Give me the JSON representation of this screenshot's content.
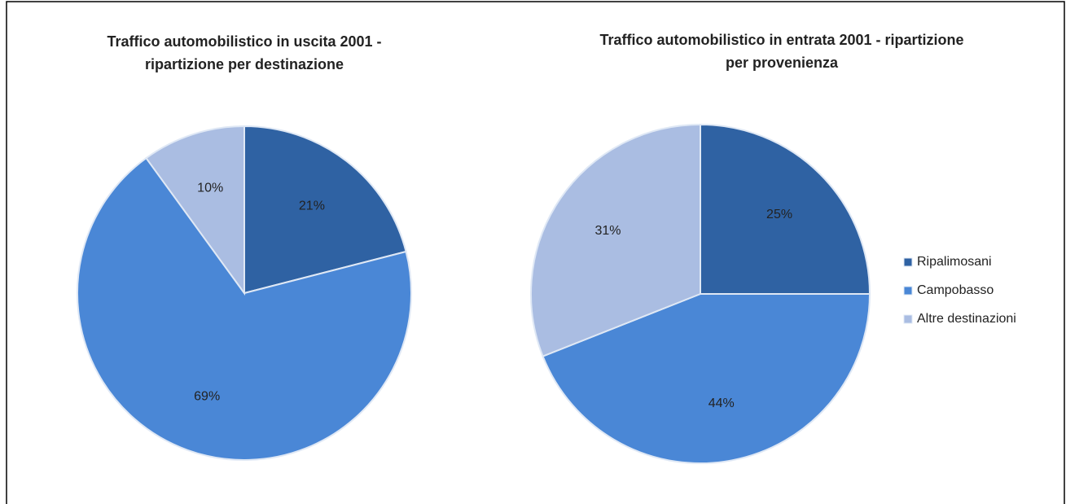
{
  "legend": {
    "categories": [
      "Ripalimosani",
      "Campobasso",
      "Altre destinazioni"
    ],
    "colors": [
      "#2f62a3",
      "#4a87d6",
      "#aabde2"
    ]
  },
  "chart_data": [
    {
      "type": "pie",
      "title": [
        "Traffico automobilistico in uscita 2001 -",
        "ripartizione per destinazione"
      ],
      "values": [
        21,
        69,
        10
      ],
      "value_labels": [
        "21%",
        "69%",
        "10%"
      ]
    },
    {
      "type": "pie",
      "title": [
        "Traffico automobilistico in entrata 2001 - ripartizione",
        "per provenienza"
      ],
      "values": [
        25,
        44,
        31
      ],
      "value_labels": [
        "25%",
        "44%",
        "31%"
      ]
    }
  ]
}
